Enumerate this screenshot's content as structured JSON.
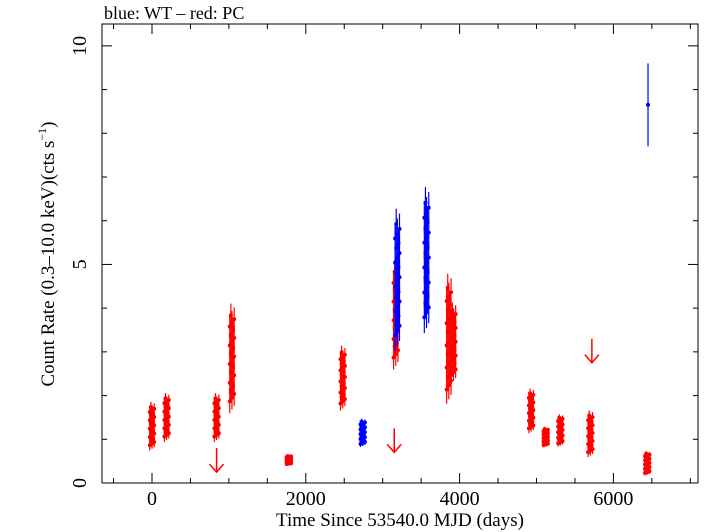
{
  "chart_data": {
    "type": "scatter",
    "title": "blue: WT – red: PC",
    "xlabel": "Time Since 53540.0 MJD (days)",
    "ylabel_main": "Count Rate (0.3–10.0 keV)(cts s",
    "ylabel_sup": "−1",
    "ylabel_end": ")",
    "xlim": [
      -650,
      7100
    ],
    "ylim": [
      0,
      10.5
    ],
    "xticks": [
      0,
      2000,
      4000,
      6000
    ],
    "xtick_labels": [
      "0",
      "2000",
      "4000",
      "6000"
    ],
    "yticks": [
      0,
      5,
      10
    ],
    "ytick_labels": [
      "0",
      "5",
      "10"
    ],
    "grid": false,
    "colors": {
      "WT": "#0000ff",
      "PC": "#ff0000"
    },
    "series": [
      {
        "mode": "PC",
        "color": "#ff0000",
        "clusters": [
          {
            "x": 0,
            "ymin": 0.7,
            "ymax": 1.9
          },
          {
            "x": 190,
            "ymin": 0.9,
            "ymax": 2.1
          },
          {
            "x": 840,
            "ymin": 0.9,
            "ymax": 2.1
          },
          {
            "x": 1040,
            "ymin": 1.5,
            "ymax": 4.2
          },
          {
            "x": 1780,
            "ymin": 0.4,
            "ymax": 0.65
          },
          {
            "x": 2480,
            "ymin": 1.6,
            "ymax": 3.2
          },
          {
            "x": 3170,
            "ymin": 2.5,
            "ymax": 5.2
          },
          {
            "x": 3860,
            "ymin": 1.7,
            "ymax": 4.9
          },
          {
            "x": 3920,
            "ymin": 2.2,
            "ymax": 4.2
          },
          {
            "x": 4930,
            "ymin": 1.1,
            "ymax": 2.2
          },
          {
            "x": 5120,
            "ymin": 0.8,
            "ymax": 1.3
          },
          {
            "x": 5310,
            "ymin": 0.8,
            "ymax": 1.6
          },
          {
            "x": 5700,
            "ymin": 0.55,
            "ymax": 1.7
          },
          {
            "x": 6440,
            "ymin": 0.15,
            "ymax": 0.75
          }
        ]
      },
      {
        "mode": "WT",
        "color": "#0000ff",
        "clusters": [
          {
            "x": 2740,
            "ymin": 0.8,
            "ymax": 1.5
          },
          {
            "x": 3190,
            "ymin": 2.9,
            "ymax": 6.4
          },
          {
            "x": 3570,
            "ymin": 3.3,
            "ymax": 6.9
          }
        ],
        "points": [
          {
            "x": 6450,
            "y": 8.65,
            "yerr_low": 7.7,
            "yerr_high": 9.6
          }
        ]
      }
    ],
    "upper_limits": [
      {
        "x": 840,
        "y": 0.25,
        "color": "#ff0000"
      },
      {
        "x": 3150,
        "y": 0.7,
        "color": "#ff0000"
      },
      {
        "x": 5720,
        "y": 2.75,
        "color": "#ff0000"
      }
    ]
  }
}
